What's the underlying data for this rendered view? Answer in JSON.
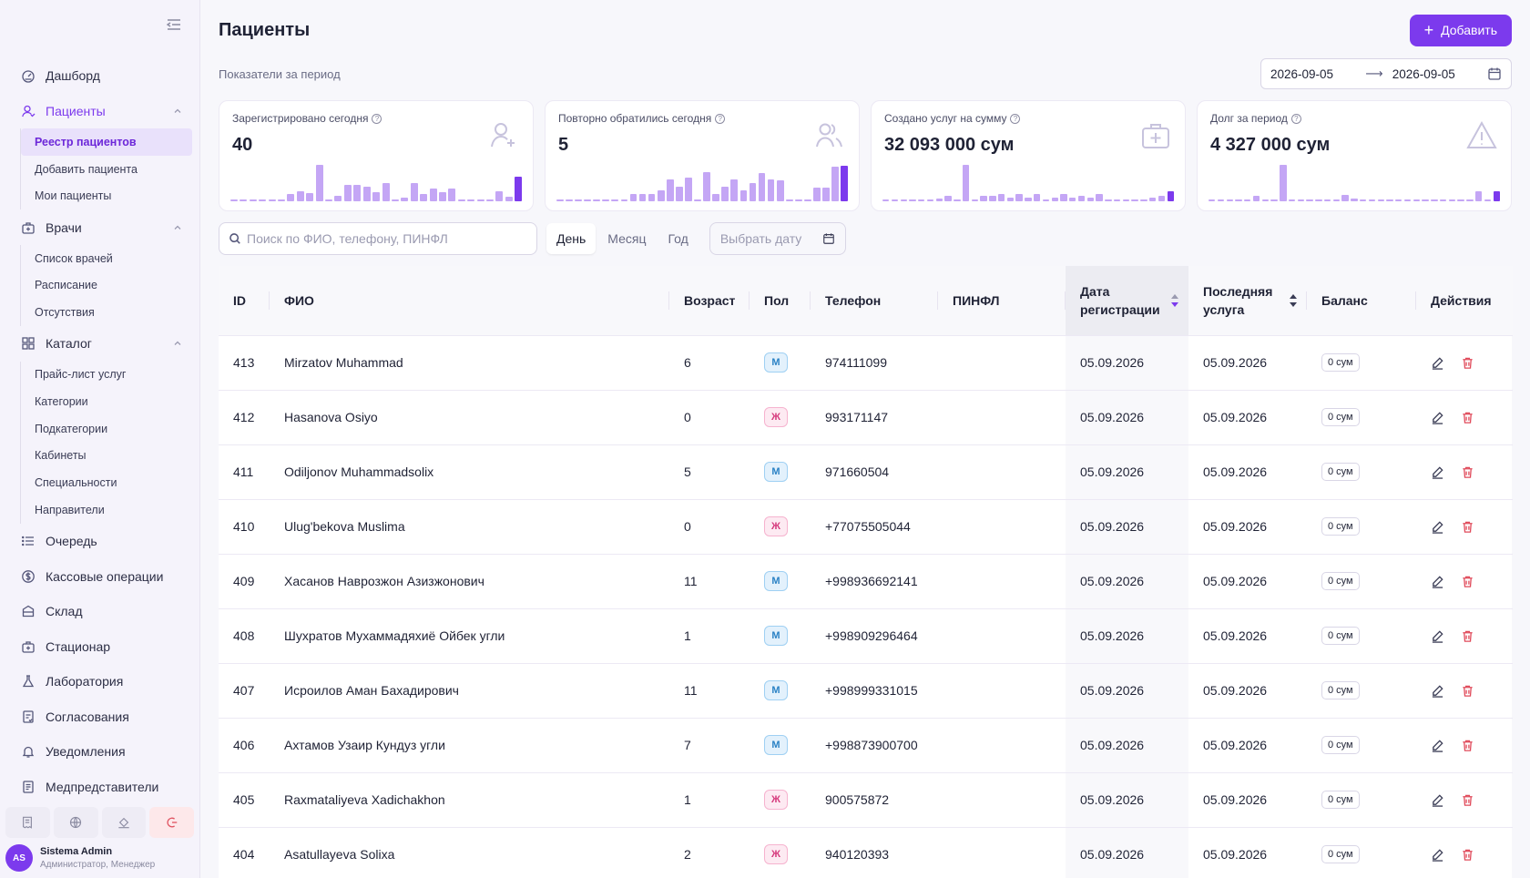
{
  "sidebar": {
    "nav": [
      {
        "label": "Дашборд",
        "icon": "dashboard-icon"
      },
      {
        "label": "Пациенты",
        "icon": "patients-icon",
        "active": true
      },
      {
        "label": "Врачи",
        "icon": "doctors-icon"
      },
      {
        "label": "Каталог",
        "icon": "catalog-icon"
      },
      {
        "label": "Очередь",
        "icon": "queue-icon"
      },
      {
        "label": "Кассовые операции",
        "icon": "cash-icon"
      },
      {
        "label": "Склад",
        "icon": "warehouse-icon"
      },
      {
        "label": "Стационар",
        "icon": "hospital-icon"
      },
      {
        "label": "Лаборатория",
        "icon": "lab-icon"
      },
      {
        "label": "Согласования",
        "icon": "approvals-icon"
      },
      {
        "label": "Уведомления",
        "icon": "bell-icon"
      },
      {
        "label": "Медпредставители",
        "icon": "reps-icon"
      }
    ],
    "patients_sub": [
      "Реестр пациентов",
      "Добавить пациента",
      "Мои пациенты"
    ],
    "doctors_sub": [
      "Список врачей",
      "Расписание",
      "Отсутствия"
    ],
    "catalog_sub": [
      "Прайс-лист услуг",
      "Категории",
      "Подкатегории",
      "Кабинеты",
      "Специальности",
      "Направители"
    ],
    "user": {
      "initials": "AS",
      "name": "Sistema Admin",
      "role": "Администратор, Менеджер"
    }
  },
  "header": {
    "title": "Пациенты",
    "add_label": "Добавить"
  },
  "period": {
    "label": "Показатели за период",
    "from": "2026-09-05",
    "to": "2026-09-05"
  },
  "stats": [
    {
      "title": "Зарегистрировано сегодня",
      "value": "40",
      "icon": "user-add-icon",
      "bars": [
        0.02,
        0.02,
        0.02,
        0.02,
        0.02,
        0.02,
        0.2,
        0.28,
        0.22,
        1.0,
        0.02,
        0.16,
        0.45,
        0.45,
        0.4,
        0.25,
        0.5,
        0.02,
        0.1,
        0.5,
        0.2,
        0.35,
        0.25,
        0.35,
        0.02,
        0.02,
        0.02,
        0.02,
        0.28,
        0.12,
        0.68
      ]
    },
    {
      "title": "Повторно обратились сегодня",
      "value": "5",
      "icon": "users-icon",
      "bars": [
        0.02,
        0.02,
        0.02,
        0.02,
        0.02,
        0.02,
        0.02,
        0.02,
        0.2,
        0.2,
        0.2,
        0.3,
        0.6,
        0.4,
        0.65,
        0.02,
        0.8,
        0.2,
        0.4,
        0.6,
        0.3,
        0.5,
        0.78,
        0.6,
        0.58,
        0.02,
        0.02,
        0.02,
        0.38,
        0.38,
        0.95,
        0.97
      ]
    },
    {
      "title": "Создано услуг на сумму",
      "value": "32 093 000 сум",
      "icon": "medkit-icon",
      "bars": [
        0.02,
        0.02,
        0.02,
        0.02,
        0.02,
        0.02,
        0.08,
        0.15,
        0.02,
        1.0,
        0.02,
        0.15,
        0.15,
        0.2,
        0.1,
        0.2,
        0.1,
        0.2,
        0.02,
        0.1,
        0.2,
        0.1,
        0.15,
        0.1,
        0.2,
        0.02,
        0.02,
        0.02,
        0.02,
        0.02,
        0.1,
        0.15,
        0.28
      ]
    },
    {
      "title": "Долг за период",
      "value": "4 327 000 сум",
      "icon": "warning-icon",
      "bars": [
        0.02,
        0.02,
        0.02,
        0.02,
        0.02,
        0.15,
        0.02,
        0.02,
        1.0,
        0.02,
        0.02,
        0.05,
        0.02,
        0.02,
        0.02,
        0.18,
        0.08,
        0.02,
        0.05,
        0.02,
        0.05,
        0.05,
        0.02,
        0.02,
        0.02,
        0.02,
        0.02,
        0.02,
        0.02,
        0.02,
        0.28,
        0.05,
        0.28
      ]
    }
  ],
  "filters": {
    "search_placeholder": "Поиск по ФИО, телефону, ПИНФЛ",
    "tabs": [
      "День",
      "Месяц",
      "Год"
    ],
    "date_placeholder": "Выбрать дату"
  },
  "table": {
    "headers": {
      "id": "ID",
      "fio": "ФИО",
      "age": "Возраст",
      "sex": "Пол",
      "phone": "Телефон",
      "pinfl": "ПИНФЛ",
      "reg": "Дата регистрации",
      "last": "Последняя услуга",
      "balance": "Баланс",
      "actions": "Действия"
    },
    "rows": [
      {
        "id": "413",
        "fio": "Mirzatov Muhammad",
        "age": "6",
        "sex": "М",
        "phone": "974111099",
        "pinfl": "",
        "reg": "05.09.2026",
        "last": "05.09.2026",
        "balance": "0 сум"
      },
      {
        "id": "412",
        "fio": "Hasanova Osiyo",
        "age": "0",
        "sex": "Ж",
        "phone": "993171147",
        "pinfl": "",
        "reg": "05.09.2026",
        "last": "05.09.2026",
        "balance": "0 сум"
      },
      {
        "id": "411",
        "fio": "Odiljonov Muhammadsolix",
        "age": "5",
        "sex": "М",
        "phone": "971660504",
        "pinfl": "",
        "reg": "05.09.2026",
        "last": "05.09.2026",
        "balance": "0 сум"
      },
      {
        "id": "410",
        "fio": "Ulug'bekova Muslima",
        "age": "0",
        "sex": "Ж",
        "phone": "+77075505044",
        "pinfl": "",
        "reg": "05.09.2026",
        "last": "05.09.2026",
        "balance": "0 сум"
      },
      {
        "id": "409",
        "fio": "Хасанов Наврозжон Азизжонович",
        "age": "11",
        "sex": "М",
        "phone": "+998936692141",
        "pinfl": "",
        "reg": "05.09.2026",
        "last": "05.09.2026",
        "balance": "0 сум"
      },
      {
        "id": "408",
        "fio": "Шухратов Мухаммадяхиё Ойбек угли",
        "age": "1",
        "sex": "М",
        "phone": "+998909296464",
        "pinfl": "",
        "reg": "05.09.2026",
        "last": "05.09.2026",
        "balance": "0 сум"
      },
      {
        "id": "407",
        "fio": "Исроилов Аман Бахадирович",
        "age": "11",
        "sex": "М",
        "phone": "+998999331015",
        "pinfl": "",
        "reg": "05.09.2026",
        "last": "05.09.2026",
        "balance": "0 сум"
      },
      {
        "id": "406",
        "fio": "Ахтамов Узаир Кундуз угли",
        "age": "7",
        "sex": "М",
        "phone": "+998873900700",
        "pinfl": "",
        "reg": "05.09.2026",
        "last": "05.09.2026",
        "balance": "0 сум"
      },
      {
        "id": "405",
        "fio": "Raxmataliyeva Xadichakhon",
        "age": "1",
        "sex": "Ж",
        "phone": "900575872",
        "pinfl": "",
        "reg": "05.09.2026",
        "last": "05.09.2026",
        "balance": "0 сум"
      },
      {
        "id": "404",
        "fio": "Asatullayeva Solixa",
        "age": "2",
        "sex": "Ж",
        "phone": "940120393",
        "pinfl": "",
        "reg": "05.09.2026",
        "last": "05.09.2026",
        "balance": "0 сум"
      }
    ]
  },
  "colors": {
    "accent": "#7c3aed",
    "bar": "#c4a6f5",
    "danger": "#e04a5a",
    "male": "#2b82c5",
    "female": "#d63a7d"
  }
}
